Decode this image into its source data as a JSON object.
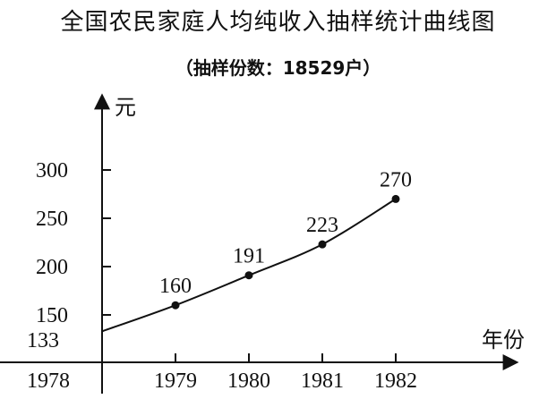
{
  "chart_data": {
    "type": "line",
    "title": "全国农民家庭人均纯收入抽样统计曲线图",
    "subtitle": "（抽样份数：18529户）",
    "xlabel": "年份",
    "ylabel": "元",
    "x": [
      1978,
      1979,
      1980,
      1981,
      1982
    ],
    "y_ticks": [
      150,
      200,
      250,
      300
    ],
    "x_origin_label": "1978",
    "y_origin_label": "133",
    "series": [
      {
        "x": [
          1978,
          1979,
          1980,
          1981,
          1982
        ],
        "values": [
          133,
          160,
          191,
          223,
          270
        ],
        "labels": [
          "",
          "160",
          "191",
          "223",
          "270"
        ]
      }
    ],
    "ylim": [
      115,
      330
    ],
    "grid": false,
    "line_color": "#111111"
  }
}
